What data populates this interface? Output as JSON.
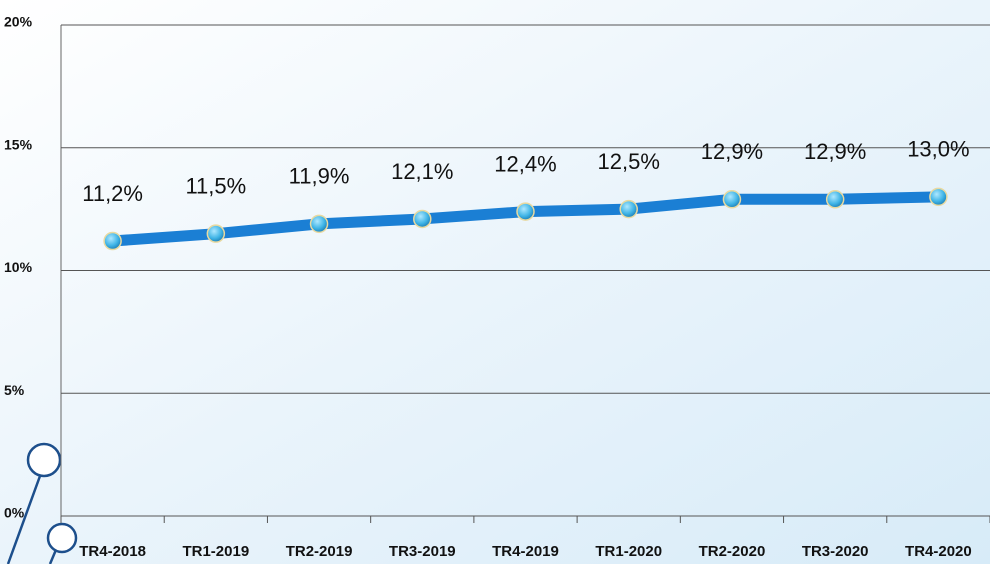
{
  "chart_data": {
    "type": "line",
    "categories": [
      "TR4-2018",
      "TR1-2019",
      "TR2-2019",
      "TR3-2019",
      "TR4-2019",
      "TR1-2020",
      "TR2-2020",
      "TR3-2020",
      "TR4-2020"
    ],
    "values": [
      11.2,
      11.5,
      11.9,
      12.1,
      12.4,
      12.5,
      12.9,
      12.9,
      13.0
    ],
    "value_labels": [
      "11,2%",
      "11,5%",
      "11,9%",
      "12,1%",
      "12,4%",
      "12,5%",
      "12,9%",
      "12,9%",
      "13,0%"
    ],
    "color": "#1b7fd4",
    "marker_color": "#3fb4e6",
    "ylim": [
      0,
      20
    ],
    "yticks": [
      {
        "value": 0,
        "label": "0%"
      },
      {
        "value": 5,
        "label": "5%"
      },
      {
        "value": 10,
        "label": "10%"
      },
      {
        "value": 15,
        "label": "15%"
      },
      {
        "value": 20,
        "label": "20%"
      }
    ],
    "grid": true
  }
}
